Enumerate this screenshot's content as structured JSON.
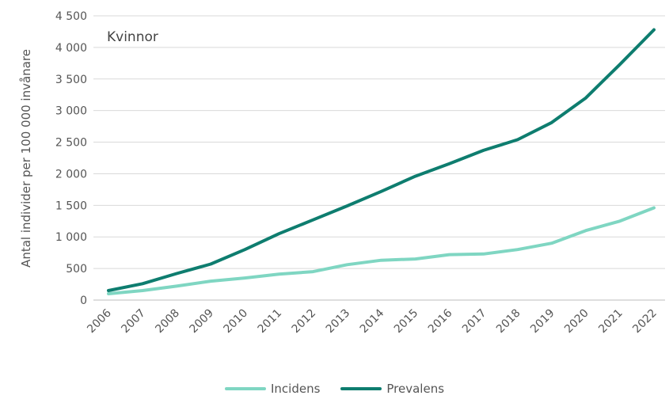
{
  "chart_data": {
    "type": "line",
    "panel_label": "Kvinnor",
    "ylabel": "Antal individer per 100 000 invånare",
    "xlabel": "",
    "ylim": [
      0,
      4500
    ],
    "yticks": [
      0,
      500,
      1000,
      1500,
      2000,
      2500,
      3000,
      3500,
      4000,
      4500
    ],
    "ytick_labels": [
      "0",
      "500",
      "1 000",
      "1 500",
      "2 000",
      "2 500",
      "3 000",
      "3 500",
      "4 000",
      "4 500"
    ],
    "categories": [
      "2006",
      "2007",
      "2008",
      "2009",
      "2010",
      "2011",
      "2012",
      "2013",
      "2014",
      "2015",
      "2016",
      "2017",
      "2018",
      "2019",
      "2020",
      "2021",
      "2022"
    ],
    "series": [
      {
        "name": "Incidens",
        "color": "#7fd6c2",
        "values": [
          100,
          150,
          220,
          300,
          350,
          410,
          450,
          560,
          630,
          650,
          720,
          730,
          800,
          900,
          1100,
          1250,
          1460
        ]
      },
      {
        "name": "Prevalens",
        "color": "#0e7d6f",
        "values": [
          150,
          260,
          420,
          570,
          800,
          1050,
          1270,
          1490,
          1720,
          1960,
          2160,
          2370,
          2540,
          2810,
          3200,
          3730,
          4280
        ]
      }
    ],
    "grid": true,
    "legend_position": "bottom-center"
  }
}
